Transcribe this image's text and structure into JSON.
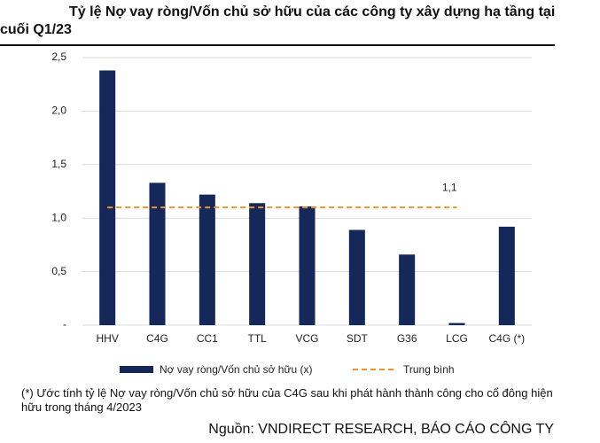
{
  "chart_data": {
    "type": "bar",
    "title": "Tỷ lệ Nợ vay ròng/Vốn chủ sở hữu của các công ty xây dựng hạ tầng tại cuối Q1/23",
    "categories": [
      "HHV",
      "C4G",
      "CC1",
      "TTL",
      "VCG",
      "SDT",
      "G36",
      "LCG",
      "C4G (*)"
    ],
    "series": [
      {
        "name": "Nợ vay ròng/Vốn chủ sở hữu (x)",
        "color": "#14285a",
        "values": [
          2.38,
          1.33,
          1.22,
          1.14,
          1.11,
          0.89,
          0.66,
          0.02,
          0.92
        ]
      }
    ],
    "average": {
      "name": "Trung bình",
      "color": "#f0922b",
      "values": [
        1.1
      ],
      "value_labels": [
        "1,1"
      ]
    },
    "ylim": [
      0,
      2.5
    ],
    "yticks": [
      {
        "value": 0,
        "label": "-"
      },
      {
        "value": 0.5,
        "label": "0,5"
      },
      {
        "value": 1,
        "label": "1,0"
      },
      {
        "value": 1.5,
        "label": "1,5"
      },
      {
        "value": 2,
        "label": "2,0"
      },
      {
        "value": 2.5,
        "label": "2,5"
      }
    ],
    "grid": true,
    "footnote": "(*) Ước tính tỷ lệ Nợ vay ròng/Vốn chủ sở hữu của C4G sau khi phát hành thành công cho cổ đông hiện hữu trong tháng 4/2023",
    "source": "Nguồn: VNDIRECT RESEARCH, BÁO CÁO CÔNG TY"
  }
}
